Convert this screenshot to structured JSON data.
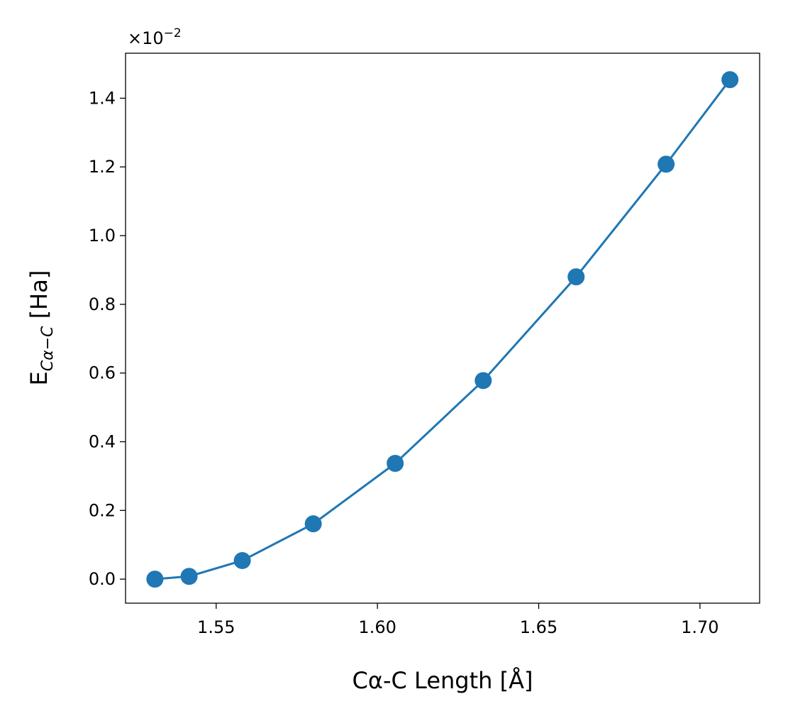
{
  "chart_data": {
    "type": "line",
    "title": "",
    "xlabel": "Cα-C Length [Å]",
    "ylabel_main": "E",
    "ylabel_sub": "Cα−C",
    "ylabel_unit": " [Ha]",
    "y_multiplier": "×10",
    "y_multiplier_exp": "−2",
    "xlim": [
      1.5219,
      1.7185
    ],
    "ylim": [
      -0.07,
      1.531
    ],
    "xticks": [
      1.55,
      1.6,
      1.65,
      1.7
    ],
    "xtick_labels": [
      "1.55",
      "1.60",
      "1.65",
      "1.70"
    ],
    "yticks": [
      0.0,
      0.2,
      0.4,
      0.6,
      0.8,
      1.0,
      1.2,
      1.4
    ],
    "ytick_labels": [
      "0.0",
      "0.2",
      "0.4",
      "0.6",
      "0.8",
      "1.0",
      "1.2",
      "1.4"
    ],
    "grid": false,
    "series": [
      {
        "name": "E",
        "color": "#1f77b4",
        "marker": "circle",
        "x": [
          1.531,
          1.5416,
          1.5581,
          1.5801,
          1.6055,
          1.6328,
          1.6616,
          1.6895,
          1.7093
        ],
        "y": [
          0.0,
          0.008,
          0.054,
          0.161,
          0.337,
          0.578,
          0.88,
          1.208,
          1.454
        ]
      }
    ]
  }
}
